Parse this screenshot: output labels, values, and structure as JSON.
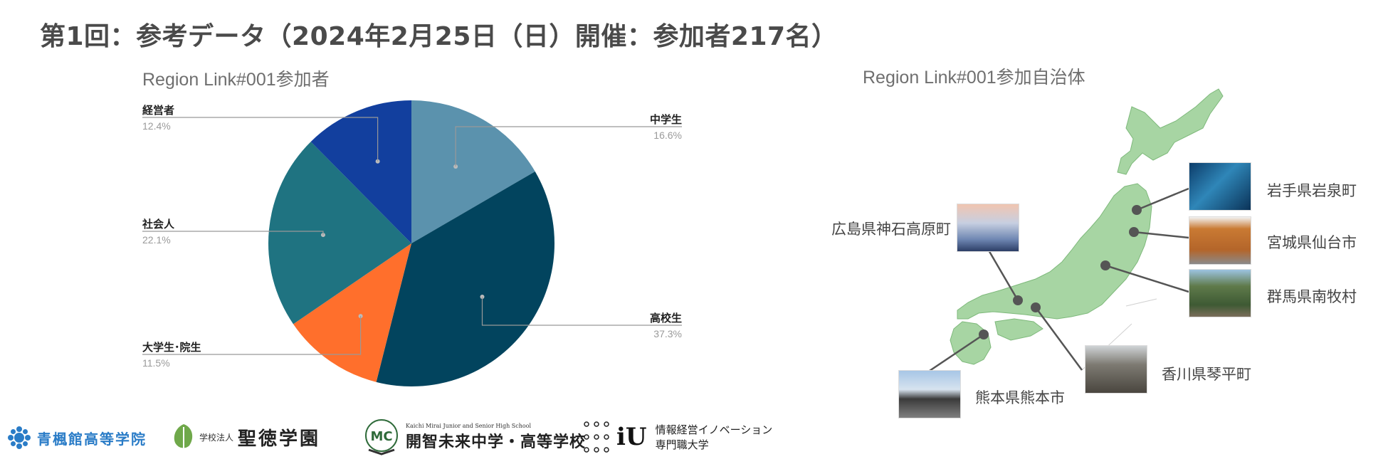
{
  "page": {
    "title": "第1回：参考データ（2024年2月25日（日）開催：参加者217名）"
  },
  "chart_data": {
    "type": "pie",
    "title": "Region Link#001参加者",
    "categories": [
      "中学生",
      "高校生",
      "大学生･院生",
      "社会人",
      "経営者"
    ],
    "values": [
      16.6,
      37.3,
      11.5,
      22.1,
      12.4
    ],
    "labels": [
      "16.6%",
      "37.3%",
      "11.5%",
      "22.1%",
      "12.4%"
    ],
    "colors": [
      "#5b92ad",
      "#02445e",
      "#ff6f2c",
      "#1f7381",
      "#123f9e"
    ]
  },
  "map": {
    "title": "Region Link#001参加自治体",
    "places": [
      {
        "name": "岩手県岩泉町",
        "icon": "cave-photo"
      },
      {
        "name": "宮城県仙台市",
        "icon": "building-photo"
      },
      {
        "name": "群馬県南牧村",
        "icon": "mountain-village-photo"
      },
      {
        "name": "広島県神石高原町",
        "icon": "sea-of-clouds-photo"
      },
      {
        "name": "香川県琴平町",
        "icon": "stone-stairs-photo"
      },
      {
        "name": "熊本県熊本市",
        "icon": "castle-photo"
      }
    ]
  },
  "logos": {
    "seiho": "青楓館高等学院",
    "seitoku_prefix": "学校法人",
    "seitoku": "聖徳学園",
    "kaichi_en": "Kaichi Mirai Junior and Senior High School",
    "kaichi": "開智未来中学・高等学校",
    "iu": "iU",
    "iu_name_line1": "情報経営イノベーション",
    "iu_name_line2": "専門職大学"
  }
}
